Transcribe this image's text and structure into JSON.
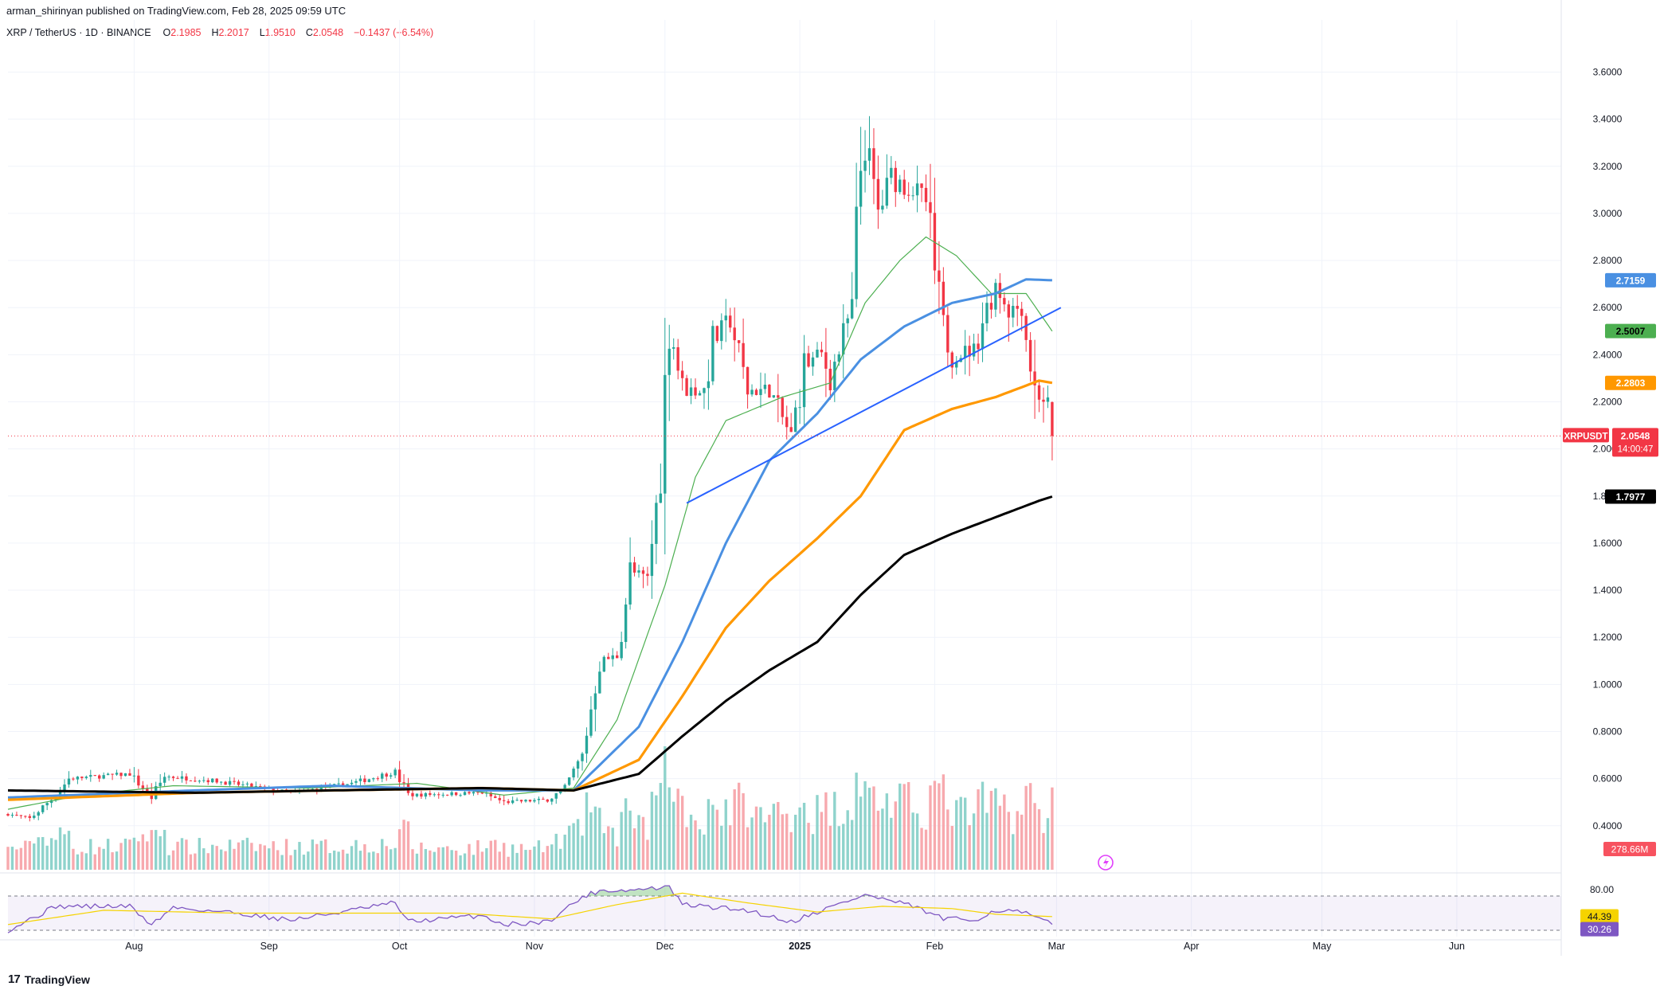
{
  "header": {
    "publisher": "arman_shirinyan published on TradingView.com, Feb 28, 2025 09:59 UTC",
    "symbol": "XRP / TetherUS · 1D · BINANCE",
    "ohlc": [
      {
        "label": "O",
        "value": "2.1985"
      },
      {
        "label": "H",
        "value": "2.2017"
      },
      {
        "label": "L",
        "value": "1.9510"
      },
      {
        "label": "C",
        "value": "2.0548"
      }
    ],
    "change": "−0.1437 (−6.54%)"
  },
  "footer": {
    "logo_text": "TradingView",
    "logo_icon": "tradingview-logo-icon"
  },
  "colors": {
    "up": "#26a69a",
    "down": "#f23645",
    "vol_up": "#8fd3cc",
    "vol_down": "#f7a9ae",
    "ma20": "#4caf50",
    "ma50": "#4a90e2",
    "ma100": "#ff9800",
    "ma200": "#000000",
    "trendline": "#2962ff",
    "rsi": "#7e57c2",
    "rsi_ma": "#f5d300",
    "current_price": "#f23645"
  },
  "chart_data": {
    "type": "candlestick",
    "symbol": "XRPUSDT",
    "timeframe": "1D",
    "exchange": "BINANCE",
    "x_axis": {
      "type": "date",
      "range": [
        "2024-07-03",
        "2025-06-25"
      ],
      "tick_labels": [
        {
          "label": "Aug",
          "date": "2024-08-01"
        },
        {
          "label": "Sep",
          "date": "2024-09-01"
        },
        {
          "label": "Oct",
          "date": "2024-10-01"
        },
        {
          "label": "Nov",
          "date": "2024-11-01"
        },
        {
          "label": "Dec",
          "date": "2024-12-01"
        },
        {
          "label": "2025",
          "date": "2025-01-01"
        },
        {
          "label": "Feb",
          "date": "2025-02-01"
        },
        {
          "label": "Mar",
          "date": "2025-03-01"
        },
        {
          "label": "Apr",
          "date": "2025-04-01"
        },
        {
          "label": "May",
          "date": "2025-05-01"
        },
        {
          "label": "Jun",
          "date": "2025-06-01"
        }
      ]
    },
    "y_axis": {
      "scale": "linear",
      "range": [
        0.22,
        3.72
      ],
      "tick_labels": [
        "0.4000",
        "0.6000",
        "0.8000",
        "1.0000",
        "1.2000",
        "1.4000",
        "1.6000",
        "1.8000",
        "2.0000",
        "2.2000",
        "2.4000",
        "2.6000",
        "2.8000",
        "3.0000",
        "3.2000",
        "3.4000",
        "3.6000"
      ],
      "grid": true
    },
    "price_key_points": [
      {
        "date": "2024-07-03",
        "close": 0.45
      },
      {
        "date": "2024-07-08",
        "close": 0.43
      },
      {
        "date": "2024-07-14",
        "close": 0.53
      },
      {
        "date": "2024-07-17",
        "close": 0.6
      },
      {
        "date": "2024-07-31",
        "close": 0.62
      },
      {
        "date": "2024-08-05",
        "close": 0.52
      },
      {
        "date": "2024-08-08",
        "close": 0.61
      },
      {
        "date": "2024-08-20",
        "close": 0.59
      },
      {
        "date": "2024-09-06",
        "close": 0.54
      },
      {
        "date": "2024-09-20",
        "close": 0.58
      },
      {
        "date": "2024-09-30",
        "close": 0.63
      },
      {
        "date": "2024-10-03",
        "close": 0.53
      },
      {
        "date": "2024-10-20",
        "close": 0.54
      },
      {
        "date": "2024-10-25",
        "close": 0.5
      },
      {
        "date": "2024-11-04",
        "close": 0.51
      },
      {
        "date": "2024-11-08",
        "close": 0.56
      },
      {
        "date": "2024-11-12",
        "close": 0.7
      },
      {
        "date": "2024-11-16",
        "close": 1.1
      },
      {
        "date": "2024-11-20",
        "close": 1.12
      },
      {
        "date": "2024-11-23",
        "close": 1.48
      },
      {
        "date": "2024-11-27",
        "close": 1.45
      },
      {
        "date": "2024-11-30",
        "close": 1.9
      },
      {
        "date": "2024-12-02",
        "close": 2.6
      },
      {
        "date": "2024-12-03",
        "close": 2.45
      },
      {
        "date": "2024-12-05",
        "close": 2.25
      },
      {
        "date": "2024-12-10",
        "close": 2.25
      },
      {
        "date": "2024-12-12",
        "close": 2.45
      },
      {
        "date": "2024-12-16",
        "close": 2.55
      },
      {
        "date": "2024-12-20",
        "close": 2.25
      },
      {
        "date": "2024-12-25",
        "close": 2.25
      },
      {
        "date": "2024-12-30",
        "close": 2.05
      },
      {
        "date": "2025-01-02",
        "close": 2.35
      },
      {
        "date": "2025-01-06",
        "close": 2.4
      },
      {
        "date": "2025-01-08",
        "close": 2.3
      },
      {
        "date": "2025-01-13",
        "close": 2.6
      },
      {
        "date": "2025-01-15",
        "close": 3.2
      },
      {
        "date": "2025-01-16",
        "close": 3.3
      },
      {
        "date": "2025-01-19",
        "close": 3.0
      },
      {
        "date": "2025-01-22",
        "close": 3.15
      },
      {
        "date": "2025-01-27",
        "close": 3.1
      },
      {
        "date": "2025-01-30",
        "close": 3.05
      },
      {
        "date": "2025-02-01",
        "close": 2.75
      },
      {
        "date": "2025-02-03",
        "close": 2.5
      },
      {
        "date": "2025-02-05",
        "close": 2.4
      },
      {
        "date": "2025-02-10",
        "close": 2.42
      },
      {
        "date": "2025-02-12",
        "close": 2.55
      },
      {
        "date": "2025-02-15",
        "close": 2.7
      },
      {
        "date": "2025-02-18",
        "close": 2.6
      },
      {
        "date": "2025-02-21",
        "close": 2.6
      },
      {
        "date": "2025-02-24",
        "close": 2.25
      },
      {
        "date": "2025-02-27",
        "close": 2.19
      },
      {
        "date": "2025-02-28",
        "close": 2.0548
      }
    ],
    "moving_averages": [
      {
        "key": "ma20",
        "current": "2.5007",
        "points": [
          {
            "date": "2024-07-03",
            "value": 0.47
          },
          {
            "date": "2024-07-20",
            "value": 0.53
          },
          {
            "date": "2024-08-10",
            "value": 0.57
          },
          {
            "date": "2024-09-10",
            "value": 0.56
          },
          {
            "date": "2024-10-05",
            "value": 0.58
          },
          {
            "date": "2024-10-25",
            "value": 0.53
          },
          {
            "date": "2024-11-10",
            "value": 0.56
          },
          {
            "date": "2024-11-20",
            "value": 0.85
          },
          {
            "date": "2024-12-01",
            "value": 1.42
          },
          {
            "date": "2024-12-08",
            "value": 1.88
          },
          {
            "date": "2024-12-15",
            "value": 2.12
          },
          {
            "date": "2024-12-28",
            "value": 2.22
          },
          {
            "date": "2025-01-08",
            "value": 2.28
          },
          {
            "date": "2025-01-16",
            "value": 2.62
          },
          {
            "date": "2025-01-24",
            "value": 2.8
          },
          {
            "date": "2025-01-30",
            "value": 2.9
          },
          {
            "date": "2025-02-06",
            "value": 2.82
          },
          {
            "date": "2025-02-14",
            "value": 2.66
          },
          {
            "date": "2025-02-22",
            "value": 2.66
          },
          {
            "date": "2025-02-28",
            "value": 2.5
          }
        ]
      },
      {
        "key": "ma50",
        "current": "2.7159",
        "points": [
          {
            "date": "2024-07-03",
            "value": 0.52
          },
          {
            "date": "2024-08-15",
            "value": 0.55
          },
          {
            "date": "2024-09-15",
            "value": 0.57
          },
          {
            "date": "2024-10-20",
            "value": 0.55
          },
          {
            "date": "2024-11-10",
            "value": 0.55
          },
          {
            "date": "2024-11-25",
            "value": 0.82
          },
          {
            "date": "2024-12-05",
            "value": 1.18
          },
          {
            "date": "2024-12-15",
            "value": 1.6
          },
          {
            "date": "2024-12-25",
            "value": 1.95
          },
          {
            "date": "2025-01-05",
            "value": 2.15
          },
          {
            "date": "2025-01-15",
            "value": 2.38
          },
          {
            "date": "2025-01-25",
            "value": 2.52
          },
          {
            "date": "2025-02-05",
            "value": 2.62
          },
          {
            "date": "2025-02-15",
            "value": 2.66
          },
          {
            "date": "2025-02-22",
            "value": 2.72
          },
          {
            "date": "2025-02-28",
            "value": 2.7159
          }
        ]
      },
      {
        "key": "ma100",
        "current": "2.2803",
        "points": [
          {
            "date": "2024-07-03",
            "value": 0.51
          },
          {
            "date": "2024-08-15",
            "value": 0.54
          },
          {
            "date": "2024-09-15",
            "value": 0.55
          },
          {
            "date": "2024-10-20",
            "value": 0.56
          },
          {
            "date": "2024-11-10",
            "value": 0.55
          },
          {
            "date": "2024-11-25",
            "value": 0.68
          },
          {
            "date": "2024-12-05",
            "value": 0.95
          },
          {
            "date": "2024-12-15",
            "value": 1.24
          },
          {
            "date": "2024-12-25",
            "value": 1.44
          },
          {
            "date": "2025-01-05",
            "value": 1.62
          },
          {
            "date": "2025-01-15",
            "value": 1.8
          },
          {
            "date": "2025-01-25",
            "value": 2.08
          },
          {
            "date": "2025-02-05",
            "value": 2.17
          },
          {
            "date": "2025-02-15",
            "value": 2.22
          },
          {
            "date": "2025-02-25",
            "value": 2.29
          },
          {
            "date": "2025-02-28",
            "value": 2.2803
          }
        ]
      },
      {
        "key": "ma200",
        "current": "1.7977",
        "points": [
          {
            "date": "2024-07-03",
            "value": 0.55
          },
          {
            "date": "2024-08-15",
            "value": 0.54
          },
          {
            "date": "2024-09-15",
            "value": 0.55
          },
          {
            "date": "2024-10-20",
            "value": 0.56
          },
          {
            "date": "2024-11-10",
            "value": 0.55
          },
          {
            "date": "2024-11-25",
            "value": 0.62
          },
          {
            "date": "2024-12-05",
            "value": 0.78
          },
          {
            "date": "2024-12-15",
            "value": 0.93
          },
          {
            "date": "2024-12-25",
            "value": 1.06
          },
          {
            "date": "2025-01-05",
            "value": 1.18
          },
          {
            "date": "2025-01-15",
            "value": 1.38
          },
          {
            "date": "2025-01-25",
            "value": 1.55
          },
          {
            "date": "2025-02-05",
            "value": 1.64
          },
          {
            "date": "2025-02-15",
            "value": 1.71
          },
          {
            "date": "2025-02-25",
            "value": 1.78
          },
          {
            "date": "2025-02-28",
            "value": 1.7977
          }
        ]
      }
    ],
    "trendline": {
      "from": {
        "date": "2024-12-06",
        "value": 1.77
      },
      "to": {
        "date": "2025-03-02",
        "value": 2.6
      }
    },
    "price_labels": [
      {
        "text": "2.7159",
        "value": 2.7159,
        "color_key": "ma50"
      },
      {
        "text": "2.5007",
        "value": 2.5007,
        "color_key": "ma20"
      },
      {
        "text": "2.2803",
        "value": 2.2803,
        "color_key": "ma100"
      },
      {
        "text": "1.7977",
        "value": 1.7977,
        "color_key": "ma200"
      }
    ],
    "current_price": {
      "symbol": "XRPUSDT",
      "value": "2.0548",
      "countdown": "14:00:47"
    },
    "volume": {
      "current_label": "278.66M"
    },
    "rsi": {
      "levels": [
        80,
        20
      ],
      "level_labels": [
        "80.00"
      ],
      "current_rsi": "30.26",
      "current_rsi_ma": "44.39",
      "rsi_points": [
        {
          "date": "2024-07-03",
          "value": 20
        },
        {
          "date": "2024-07-14",
          "value": 62
        },
        {
          "date": "2024-07-31",
          "value": 62
        },
        {
          "date": "2024-08-05",
          "value": 30
        },
        {
          "date": "2024-08-10",
          "value": 60
        },
        {
          "date": "2024-08-25",
          "value": 50
        },
        {
          "date": "2024-09-06",
          "value": 38
        },
        {
          "date": "2024-09-20",
          "value": 55
        },
        {
          "date": "2024-09-30",
          "value": 68
        },
        {
          "date": "2024-10-03",
          "value": 35
        },
        {
          "date": "2024-10-20",
          "value": 46
        },
        {
          "date": "2024-10-25",
          "value": 30
        },
        {
          "date": "2024-11-04",
          "value": 35
        },
        {
          "date": "2024-11-12",
          "value": 78
        },
        {
          "date": "2024-11-16",
          "value": 90
        },
        {
          "date": "2024-11-23",
          "value": 90
        },
        {
          "date": "2024-12-02",
          "value": 96
        },
        {
          "date": "2024-12-05",
          "value": 65
        },
        {
          "date": "2024-12-20",
          "value": 55
        },
        {
          "date": "2024-12-30",
          "value": 35
        },
        {
          "date": "2025-01-06",
          "value": 55
        },
        {
          "date": "2025-01-16",
          "value": 82
        },
        {
          "date": "2025-01-27",
          "value": 62
        },
        {
          "date": "2025-02-03",
          "value": 40
        },
        {
          "date": "2025-02-10",
          "value": 38
        },
        {
          "date": "2025-02-15",
          "value": 55
        },
        {
          "date": "2025-02-21",
          "value": 52
        },
        {
          "date": "2025-02-28",
          "value": 30
        }
      ],
      "rsi_ma_points": [
        {
          "date": "2024-07-03",
          "value": 30
        },
        {
          "date": "2024-07-25",
          "value": 55
        },
        {
          "date": "2024-08-25",
          "value": 50
        },
        {
          "date": "2024-09-25",
          "value": 50
        },
        {
          "date": "2024-10-15",
          "value": 50
        },
        {
          "date": "2024-11-05",
          "value": 40
        },
        {
          "date": "2024-11-20",
          "value": 65
        },
        {
          "date": "2024-12-05",
          "value": 85
        },
        {
          "date": "2024-12-20",
          "value": 68
        },
        {
          "date": "2025-01-05",
          "value": 52
        },
        {
          "date": "2025-01-20",
          "value": 62
        },
        {
          "date": "2025-02-05",
          "value": 58
        },
        {
          "date": "2025-02-15",
          "value": 48
        },
        {
          "date": "2025-02-28",
          "value": 44
        }
      ]
    }
  }
}
